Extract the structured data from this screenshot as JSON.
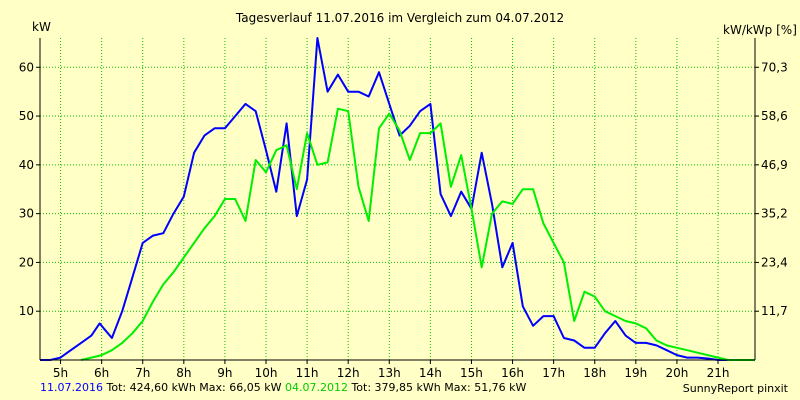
{
  "chart_data": {
    "type": "line",
    "title": "Tagesverlauf 11.07.2016 im Vergleich zum 04.07.2012",
    "ylabel_left": "kW",
    "ylabel_right": "kW/kWp [%]",
    "x_ticks": [
      "5h",
      "6h",
      "7h",
      "8h",
      "9h",
      "10h",
      "11h",
      "12h",
      "13h",
      "14h",
      "15h",
      "16h",
      "17h",
      "18h",
      "19h",
      "20h",
      "21h"
    ],
    "x_range": [
      4.5,
      21.9
    ],
    "y_ticks_left": [
      "10",
      "20",
      "30",
      "40",
      "50",
      "60"
    ],
    "y_tick_values_left": [
      10,
      20,
      30,
      40,
      50,
      60
    ],
    "y_ticks_right": [
      "11,7",
      "23,4",
      "35,2",
      "46,9",
      "58,6",
      "70,3"
    ],
    "ylim": [
      0,
      66
    ],
    "grid": true,
    "series": [
      {
        "name": "11.07.2016",
        "color": "#0000ff",
        "x": [
          4.5,
          4.75,
          5.0,
          5.25,
          5.5,
          5.75,
          5.95,
          6.1,
          6.25,
          6.5,
          6.75,
          7.0,
          7.25,
          7.5,
          7.75,
          8.0,
          8.25,
          8.5,
          8.75,
          9.0,
          9.25,
          9.5,
          9.75,
          10.0,
          10.25,
          10.5,
          10.75,
          11.0,
          11.25,
          11.5,
          11.75,
          12.0,
          12.25,
          12.5,
          12.75,
          13.0,
          13.25,
          13.5,
          13.75,
          14.0,
          14.25,
          14.5,
          14.75,
          15.0,
          15.25,
          15.5,
          15.75,
          16.0,
          16.25,
          16.5,
          16.75,
          17.0,
          17.25,
          17.5,
          17.75,
          18.0,
          18.25,
          18.5,
          18.75,
          19.0,
          19.25,
          19.5,
          19.75,
          20.0,
          20.25,
          20.5,
          20.75,
          21.0,
          21.25,
          21.5,
          21.9
        ],
        "values": [
          0,
          0,
          0.5,
          2,
          3.5,
          5,
          7.5,
          6,
          4.5,
          10,
          17,
          24,
          25.5,
          26,
          30,
          33.5,
          42.5,
          46,
          47.5,
          47.5,
          50,
          52.5,
          51,
          43,
          34.5,
          48.5,
          29.5,
          37,
          66,
          55,
          58.5,
          55,
          55,
          54,
          59,
          52.5,
          46,
          48,
          51,
          52.5,
          34,
          29.5,
          34.5,
          31,
          42.5,
          32,
          19,
          24,
          11,
          7,
          9,
          9,
          4.5,
          4,
          2.5,
          2.5,
          5.5,
          8,
          5,
          3.5,
          3.5,
          3,
          2,
          1,
          0.5,
          0.5,
          0.3,
          0,
          0,
          0,
          0
        ]
      },
      {
        "name": "04.07.2012",
        "color": "#00ee00",
        "x": [
          5.5,
          5.75,
          6.0,
          6.25,
          6.5,
          6.75,
          7.0,
          7.25,
          7.5,
          7.75,
          8.0,
          8.25,
          8.5,
          8.75,
          9.0,
          9.25,
          9.5,
          9.75,
          10.0,
          10.25,
          10.5,
          10.75,
          11.0,
          11.25,
          11.5,
          11.75,
          12.0,
          12.25,
          12.5,
          12.75,
          13.0,
          13.25,
          13.5,
          13.75,
          14.0,
          14.25,
          14.5,
          14.75,
          15.0,
          15.25,
          15.5,
          15.75,
          16.0,
          16.25,
          16.5,
          16.75,
          17.0,
          17.25,
          17.5,
          17.75,
          18.0,
          18.25,
          18.5,
          18.75,
          19.0,
          19.25,
          19.5,
          19.75,
          20.0,
          20.25,
          20.5,
          20.75,
          21.0,
          21.25,
          21.5,
          21.9
        ],
        "values": [
          0,
          0.5,
          1,
          2,
          3.5,
          5.5,
          8,
          12,
          15.5,
          18,
          21,
          24,
          27,
          29.5,
          33,
          33,
          28.5,
          41,
          38.5,
          43,
          44,
          35,
          46.5,
          40,
          40.5,
          51.5,
          51,
          35.5,
          28.5,
          47.5,
          50.5,
          47,
          41,
          46.5,
          46.5,
          48.5,
          35.5,
          42,
          31,
          19,
          30,
          32.5,
          32,
          35,
          35,
          28,
          24,
          20,
          8,
          14,
          13,
          10,
          9,
          8,
          7.5,
          6.5,
          4,
          3,
          2.5,
          2,
          1.5,
          1,
          0.5,
          0,
          0,
          0
        ]
      }
    ]
  },
  "footer": {
    "s1_date": "11.07.2016",
    "s1_stats": "Tot: 424,60 kWh Max: 66,05 kW",
    "s2_date": "04.07.2012",
    "s2_stats": "Tot: 379,85 kWh Max: 51,76 kW",
    "credit": "SunnyReport pinxit"
  }
}
